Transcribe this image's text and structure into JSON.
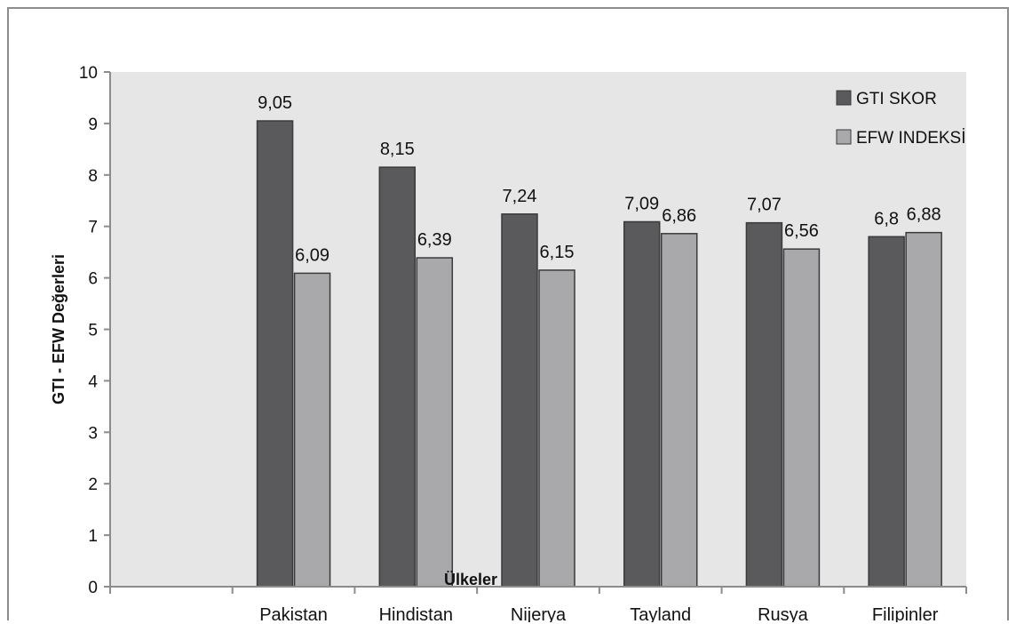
{
  "chart_data": {
    "type": "bar",
    "title": "",
    "xlabel": "Ülkeler",
    "ylabel": "GTI - EFW Değerleri",
    "ylim": [
      0,
      10
    ],
    "yticks": [
      0,
      1,
      2,
      3,
      4,
      5,
      6,
      7,
      8,
      9,
      10
    ],
    "categories": [
      "",
      "Pakistan",
      "Hindistan",
      "Nijerya",
      "Tayland",
      "Rusya",
      "Filipinler"
    ],
    "series": [
      {
        "name": "GTI SKOR",
        "color": "#5a5a5c",
        "values": [
          null,
          9.05,
          8.15,
          7.24,
          7.09,
          7.07,
          6.8
        ],
        "labels": [
          "",
          "9,05",
          "8,15",
          "7,24",
          "7,09",
          "7,07",
          "6,8"
        ]
      },
      {
        "name": "EFW INDEKSİ",
        "color": "#a9a9ab",
        "values": [
          null,
          6.09,
          6.39,
          6.15,
          6.86,
          6.56,
          6.88
        ],
        "labels": [
          "",
          "6,09",
          "6,39",
          "6,15",
          "6,86",
          "6,56",
          "6,88"
        ]
      }
    ],
    "legend_position": "top-right",
    "grid": false,
    "plot_background": "#e6e6e6"
  }
}
